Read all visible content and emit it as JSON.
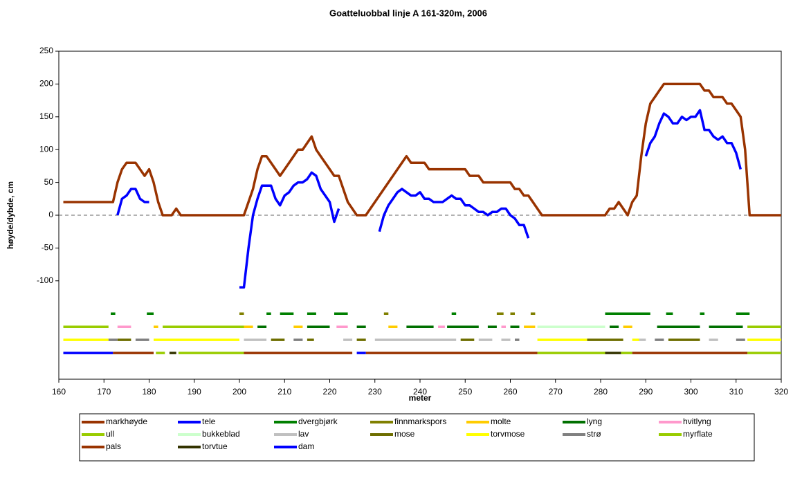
{
  "chart_data": {
    "type": "line",
    "title": "Goatteluobbal linje A 161-320m, 2006",
    "x_label": "meter",
    "y_label": "høyde/dybde, cm",
    "xlim": [
      160,
      320
    ],
    "xticks": [
      160,
      170,
      180,
      190,
      200,
      210,
      220,
      230,
      240,
      250,
      260,
      270,
      280,
      290,
      300,
      310,
      320
    ],
    "ylim": [
      -250,
      250
    ],
    "yticks": [
      -100,
      -50,
      0,
      50,
      100,
      150,
      200,
      250
    ],
    "reference_line": 0,
    "series": [
      {
        "name": "markhøyde",
        "color": "#993300",
        "x": [
          161,
          172,
          173,
          174,
          175,
          177,
          178,
          179,
          180,
          181,
          182,
          183,
          185,
          186,
          187,
          201,
          202,
          203,
          204,
          205,
          206,
          207,
          208,
          209,
          210,
          211,
          212,
          213,
          214,
          215,
          216,
          217,
          218,
          219,
          220,
          221,
          222,
          223,
          224,
          225,
          226,
          228,
          237,
          238,
          241,
          242,
          250,
          251,
          253,
          254,
          260,
          261,
          262,
          263,
          264,
          265,
          266,
          267,
          281,
          282,
          283,
          284,
          285,
          286,
          287,
          288,
          289,
          290,
          291,
          292,
          293,
          294,
          302,
          303,
          304,
          305,
          307,
          308,
          309,
          310,
          311,
          312,
          313,
          320
        ],
        "values": [
          20,
          20,
          50,
          70,
          80,
          80,
          70,
          60,
          70,
          50,
          20,
          0,
          0,
          10,
          0,
          0,
          20,
          40,
          70,
          90,
          90,
          80,
          70,
          60,
          70,
          80,
          90,
          100,
          100,
          110,
          120,
          100,
          90,
          80,
          70,
          60,
          60,
          40,
          20,
          10,
          0,
          0,
          90,
          80,
          80,
          70,
          70,
          60,
          60,
          50,
          50,
          40,
          40,
          30,
          30,
          20,
          10,
          0,
          0,
          10,
          10,
          20,
          10,
          0,
          20,
          30,
          90,
          140,
          170,
          180,
          190,
          200,
          200,
          190,
          190,
          180,
          180,
          170,
          170,
          160,
          150,
          100,
          0,
          0
        ]
      },
      {
        "name": "tele",
        "color": "#0000ff",
        "x": [
          161,
          172,
          null,
          173,
          174,
          175,
          176,
          177,
          178,
          179,
          180,
          null,
          200,
          201,
          202,
          203,
          204,
          205,
          206,
          207,
          208,
          209,
          210,
          211,
          212,
          213,
          214,
          215,
          216,
          217,
          218,
          219,
          220,
          221,
          222,
          null,
          231,
          232,
          233,
          234,
          235,
          236,
          237,
          238,
          239,
          240,
          241,
          242,
          243,
          244,
          245,
          246,
          247,
          248,
          249,
          250,
          251,
          252,
          253,
          254,
          255,
          256,
          257,
          258,
          259,
          260,
          261,
          262,
          263,
          264,
          null,
          290,
          291,
          292,
          293,
          294,
          295,
          296,
          297,
          298,
          299,
          300,
          301,
          302,
          303,
          304,
          305,
          306,
          307,
          308,
          309,
          310,
          311
        ],
        "values": [
          -210,
          -210,
          null,
          0,
          25,
          30,
          40,
          40,
          25,
          20,
          20,
          null,
          -110,
          -110,
          -50,
          0,
          25,
          45,
          45,
          45,
          25,
          15,
          30,
          35,
          45,
          50,
          50,
          55,
          65,
          60,
          40,
          30,
          20,
          -10,
          10,
          null,
          -25,
          0,
          15,
          25,
          35,
          40,
          35,
          30,
          30,
          35,
          25,
          25,
          20,
          20,
          20,
          25,
          30,
          25,
          25,
          15,
          15,
          10,
          5,
          5,
          0,
          5,
          5,
          10,
          10,
          0,
          -5,
          -15,
          -15,
          -35,
          null,
          90,
          110,
          120,
          140,
          155,
          150,
          140,
          140,
          150,
          145,
          150,
          150,
          160,
          130,
          130,
          120,
          115,
          120,
          110,
          110,
          95,
          70
        ]
      },
      {
        "name": "dvergbjørk",
        "color": "#008000",
        "x": [
          171.5,
          172.5,
          null,
          179.5,
          181,
          null,
          206,
          207,
          null,
          209,
          212,
          null,
          215,
          217,
          null,
          221,
          224,
          null,
          247,
          248,
          null,
          281,
          291,
          null,
          294.5,
          296,
          null,
          302,
          303,
          null,
          310,
          313
        ],
        "values": [
          -150,
          -150,
          null,
          -150,
          -150,
          null,
          -150,
          -150,
          null,
          -150,
          -150,
          null,
          -150,
          -150,
          null,
          -150,
          -150,
          null,
          -150,
          -150,
          null,
          -150,
          -150,
          null,
          -150,
          -150,
          null,
          -150,
          -150,
          null,
          -150,
          -150
        ]
      },
      {
        "name": "finnmarkspors",
        "color": "#808000",
        "x": [
          200,
          201,
          null,
          232,
          233,
          null,
          257,
          258.5,
          null,
          260,
          261,
          null,
          264.5,
          265.5
        ],
        "values": [
          -150,
          -150,
          null,
          -150,
          -150,
          null,
          -150,
          -150,
          null,
          -150,
          -150,
          null,
          -150,
          -150
        ]
      },
      {
        "name": "molte",
        "color": "#ffcc00",
        "x": [
          181,
          182,
          null,
          201,
          203,
          null,
          212,
          214,
          null,
          233,
          235,
          null,
          263,
          265.5,
          null,
          285,
          287
        ],
        "values": [
          -170,
          -170,
          null,
          -170,
          -170,
          null,
          -170,
          -170,
          null,
          -170,
          -170,
          null,
          -170,
          -170,
          null,
          -170,
          -170
        ]
      },
      {
        "name": "lyng",
        "color": "#007000",
        "x": [
          204,
          206,
          null,
          215,
          220,
          null,
          226,
          228,
          null,
          237,
          243,
          null,
          246,
          253,
          null,
          255,
          257,
          null,
          260,
          262,
          null,
          282,
          284,
          null,
          292.5,
          302,
          null,
          304,
          311.5
        ],
        "values": [
          -170,
          -170,
          null,
          -170,
          -170,
          null,
          -170,
          -170,
          null,
          -170,
          -170,
          null,
          -170,
          -170,
          null,
          -170,
          -170,
          null,
          -170,
          -170,
          null,
          -170,
          -170,
          null,
          -170,
          -170,
          null,
          -170,
          -170
        ]
      },
      {
        "name": "hvitlyng",
        "color": "#ff99cc",
        "x": [
          173,
          176,
          null,
          221.5,
          224,
          null,
          244,
          245.5,
          null,
          258,
          259
        ],
        "values": [
          -170,
          -170,
          null,
          -170,
          -170,
          null,
          -170,
          -170,
          null,
          -170,
          -170
        ]
      },
      {
        "name": "ull",
        "color": "#99cc00",
        "x": [
          161,
          171,
          null,
          183,
          201,
          null,
          312.5,
          320
        ],
        "values": [
          -170,
          -170,
          null,
          -170,
          -170,
          null,
          -170,
          -170
        ]
      },
      {
        "name": "bukkeblad",
        "color": "#ccffcc",
        "x": [
          266,
          281
        ],
        "values": [
          -170,
          -170
        ]
      },
      {
        "name": "lav",
        "color": "#c0c0c0",
        "x": [
          201,
          206,
          null,
          223,
          225,
          null,
          230,
          248,
          null,
          253,
          256,
          null,
          258,
          260,
          null,
          288.5,
          290,
          null,
          304,
          306
        ],
        "values": [
          -190,
          -190,
          null,
          -190,
          -190,
          null,
          -190,
          -190,
          null,
          -190,
          -190,
          null,
          -190,
          -190,
          null,
          -190,
          -190,
          null,
          -190,
          -190
        ]
      },
      {
        "name": "mose",
        "color": "#6e6e00",
        "x": [
          173,
          176,
          null,
          207,
          210,
          null,
          215,
          216.5,
          null,
          226,
          228,
          null,
          249,
          252,
          null,
          277,
          285,
          null,
          295,
          302
        ],
        "values": [
          -190,
          -190,
          null,
          -190,
          -190,
          null,
          -190,
          -190,
          null,
          -190,
          -190,
          null,
          -190,
          -190,
          null,
          -190,
          -190,
          null,
          -190,
          -190
        ]
      },
      {
        "name": "torvmose",
        "color": "#ffff00",
        "x": [
          161,
          171,
          null,
          181,
          200,
          null,
          266,
          277,
          null,
          287,
          288.5,
          null,
          312.5,
          320
        ],
        "values": [
          -190,
          -190,
          null,
          -190,
          -190,
          null,
          -190,
          -190,
          null,
          -190,
          -190,
          null,
          -190,
          -190
        ]
      },
      {
        "name": "strø",
        "color": "#808080",
        "x": [
          171,
          173,
          null,
          177,
          180,
          null,
          212,
          214,
          null,
          261,
          262,
          null,
          292,
          294,
          null,
          310,
          312
        ],
        "values": [
          -190,
          -190,
          null,
          -190,
          -190,
          null,
          -190,
          -190,
          null,
          -190,
          -190,
          null,
          -190,
          -190,
          null,
          -190,
          -190
        ]
      },
      {
        "name": "myrflate",
        "color": "#99cc00",
        "x": [
          181.5,
          183.5,
          null,
          186.5,
          201,
          null,
          266,
          281,
          null,
          284.5,
          287,
          null,
          312.5,
          320
        ],
        "values": [
          -210,
          -210,
          null,
          -210,
          -210,
          null,
          -210,
          -210,
          null,
          -210,
          -210,
          null,
          -210,
          -210
        ]
      },
      {
        "name": "pals",
        "color": "#993300",
        "x": [
          172,
          181,
          null,
          201,
          225,
          null,
          228,
          266,
          null,
          287,
          312.5
        ],
        "values": [
          -210,
          -210,
          null,
          -210,
          -210,
          null,
          -210,
          -210,
          null,
          -210,
          -210
        ]
      },
      {
        "name": "torvtue",
        "color": "#333300",
        "x": [
          184.5,
          186,
          null,
          281,
          284.5
        ],
        "values": [
          -210,
          -210,
          null,
          -210,
          -210
        ]
      },
      {
        "name": "dam",
        "color": "#0000ff",
        "x": [
          226,
          228
        ],
        "values": [
          -210,
          -210
        ]
      }
    ]
  }
}
